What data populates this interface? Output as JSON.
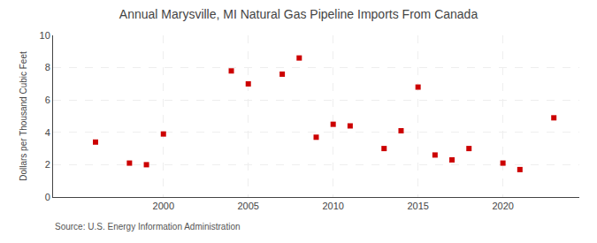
{
  "chart_data": {
    "type": "scatter",
    "title": "Annual Marysville, MI Natural Gas Pipeline Imports From Canada",
    "ylabel": "Dollars per Thousand Cubic Feet",
    "annotations": [
      "Source: U.S. Energy Information Administration"
    ],
    "x": [
      1996,
      1998,
      1999,
      2000,
      2004,
      2005,
      2007,
      2008,
      2009,
      2010,
      2011,
      2013,
      2014,
      2015,
      2016,
      2017,
      2018,
      2020,
      2021,
      2023
    ],
    "values": [
      3.4,
      2.1,
      2.0,
      3.9,
      7.8,
      7.0,
      7.6,
      8.6,
      3.7,
      4.5,
      4.4,
      3.0,
      4.1,
      6.8,
      2.6,
      2.3,
      3.0,
      2.1,
      1.7,
      4.9
    ],
    "color": "#cc0000",
    "marker": "square",
    "xlim": [
      1993.5,
      2024.5
    ],
    "ylim": [
      0,
      10
    ],
    "xticks": [
      2000,
      2005,
      2010,
      2015,
      2020
    ],
    "yticks": [
      0,
      2,
      4,
      6,
      8,
      10
    ],
    "grid": true
  }
}
